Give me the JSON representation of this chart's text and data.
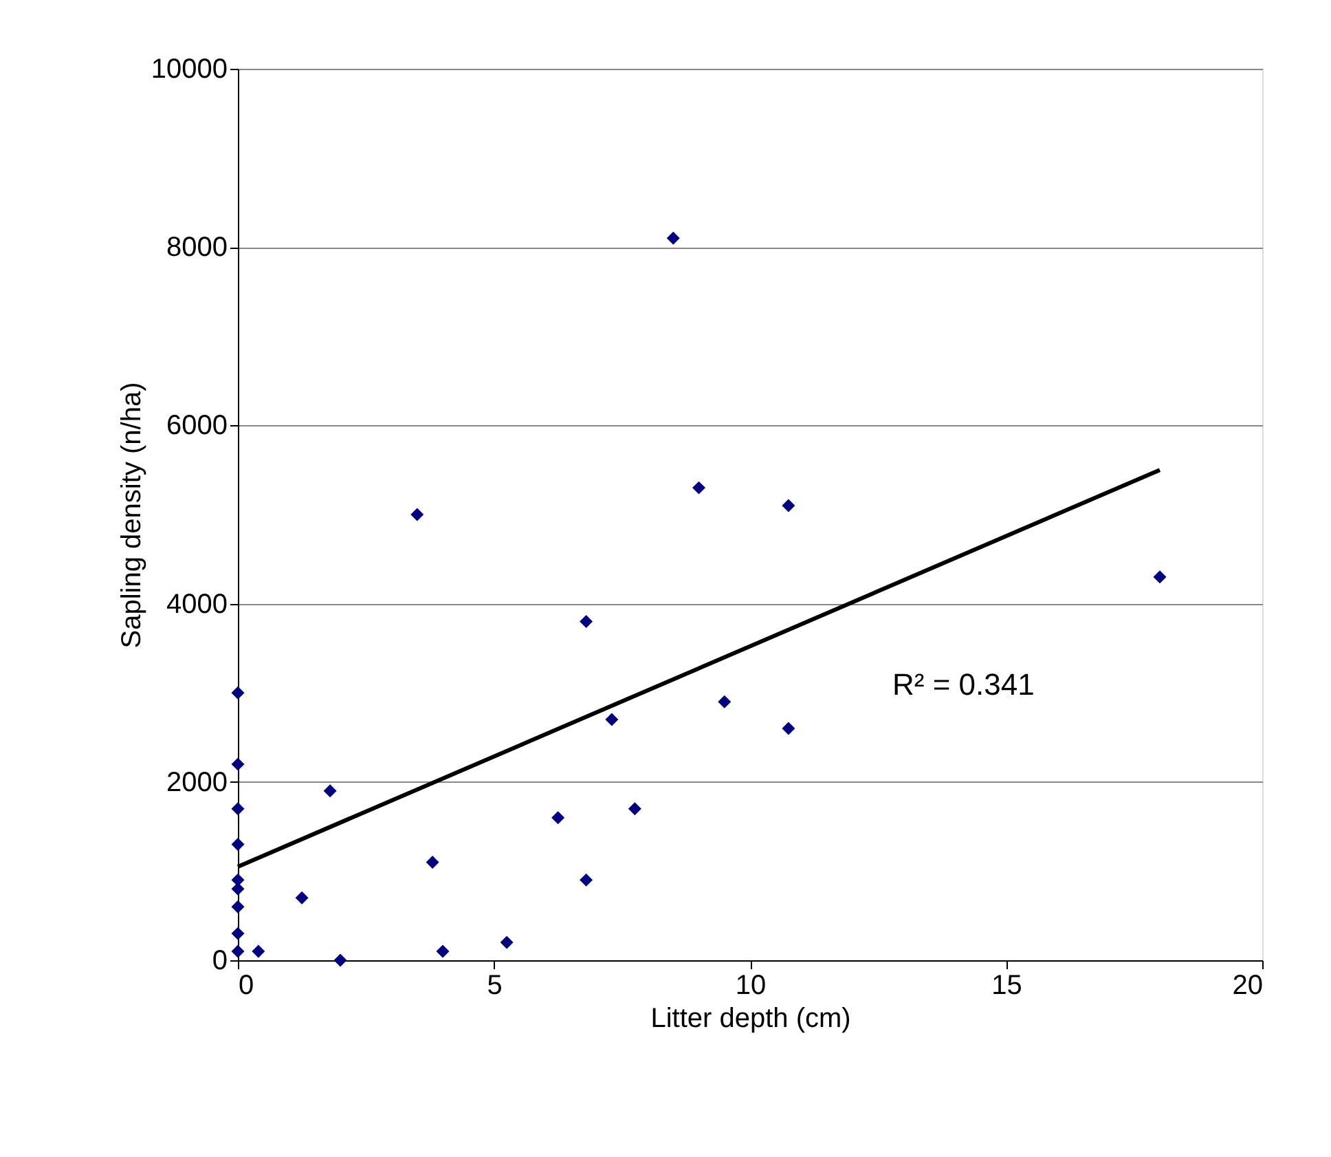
{
  "chart_data": {
    "type": "scatter",
    "xlabel": "Litter depth (cm)",
    "ylabel": "Sapling density (n/ha)",
    "xlim": [
      0,
      20
    ],
    "xticks": [
      0,
      5,
      10,
      15,
      20
    ],
    "ylim": [
      0,
      10000
    ],
    "yticks": [
      0,
      2000,
      4000,
      6000,
      8000,
      10000
    ],
    "grid": "y",
    "marker": "diamond",
    "series": [
      {
        "color": "#000080",
        "x": [
          0,
          0,
          0,
          0,
          0,
          0,
          0,
          0,
          0,
          0.4,
          1.25,
          1.8,
          2,
          3.5,
          3.8,
          4,
          5.25,
          6.25,
          6.8,
          6.8,
          7.3,
          7.75,
          8.5,
          9,
          9.5,
          10.75,
          10.75,
          18
        ],
        "values": [
          3000,
          2200,
          1700,
          1300,
          900,
          800,
          600,
          300,
          100,
          100,
          700,
          1900,
          0,
          5000,
          1100,
          100,
          200,
          1600,
          3800,
          900,
          2700,
          1700,
          8100,
          5300,
          2900,
          5100,
          2600,
          4300
        ]
      },
      {
        "type": "line",
        "color": "#000000",
        "marker": "none",
        "line_style": "solid",
        "x": [
          0,
          18
        ],
        "values": [
          1050,
          5500
        ]
      }
    ],
    "annotations": [
      "R² = 0.341"
    ]
  }
}
